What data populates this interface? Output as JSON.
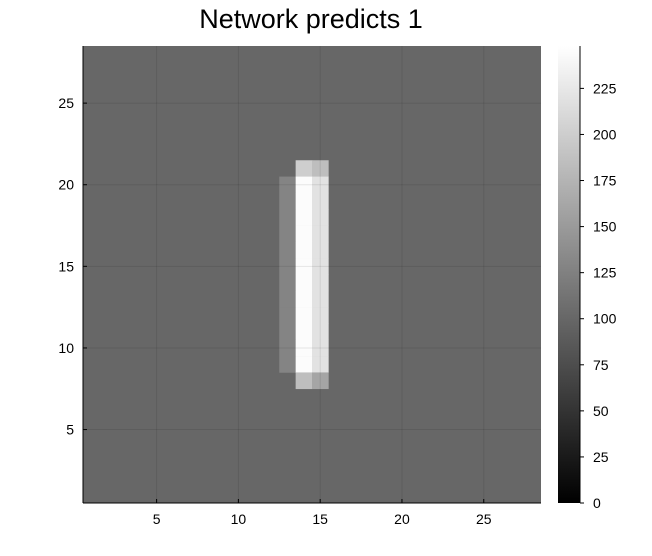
{
  "chart_data": {
    "type": "heatmap",
    "title": "Network predicts 1",
    "xlabel": "",
    "ylabel": "",
    "xlim": [
      0.5,
      28.5
    ],
    "ylim": [
      0.5,
      28.5
    ],
    "x_ticks": [
      5,
      10,
      15,
      20,
      25
    ],
    "y_ticks": [
      5,
      10,
      15,
      20,
      25
    ],
    "grid": true,
    "colormap": "grays",
    "colorbar": {
      "range": [
        0,
        248
      ],
      "ticks": [
        0,
        25,
        50,
        75,
        100,
        125,
        150,
        175,
        200,
        225
      ]
    },
    "background_value": 100,
    "cells": [
      {
        "x": 14,
        "y": 21,
        "v": 200
      },
      {
        "x": 15,
        "y": 21,
        "v": 185
      },
      {
        "x": 13,
        "y": 20,
        "v": 128
      },
      {
        "x": 14,
        "y": 20,
        "v": 245
      },
      {
        "x": 15,
        "y": 20,
        "v": 220
      },
      {
        "x": 13,
        "y": 19,
        "v": 128
      },
      {
        "x": 14,
        "y": 19,
        "v": 245
      },
      {
        "x": 15,
        "y": 19,
        "v": 220
      },
      {
        "x": 13,
        "y": 18,
        "v": 128
      },
      {
        "x": 14,
        "y": 18,
        "v": 245
      },
      {
        "x": 15,
        "y": 18,
        "v": 220
      },
      {
        "x": 13,
        "y": 17,
        "v": 128
      },
      {
        "x": 14,
        "y": 17,
        "v": 245
      },
      {
        "x": 15,
        "y": 17,
        "v": 220
      },
      {
        "x": 13,
        "y": 16,
        "v": 128
      },
      {
        "x": 14,
        "y": 16,
        "v": 245
      },
      {
        "x": 15,
        "y": 16,
        "v": 220
      },
      {
        "x": 13,
        "y": 15,
        "v": 128
      },
      {
        "x": 14,
        "y": 15,
        "v": 245
      },
      {
        "x": 15,
        "y": 15,
        "v": 220
      },
      {
        "x": 13,
        "y": 14,
        "v": 128
      },
      {
        "x": 14,
        "y": 14,
        "v": 245
      },
      {
        "x": 15,
        "y": 14,
        "v": 220
      },
      {
        "x": 13,
        "y": 13,
        "v": 128
      },
      {
        "x": 14,
        "y": 13,
        "v": 245
      },
      {
        "x": 15,
        "y": 13,
        "v": 220
      },
      {
        "x": 13,
        "y": 12,
        "v": 128
      },
      {
        "x": 14,
        "y": 12,
        "v": 245
      },
      {
        "x": 15,
        "y": 12,
        "v": 220
      },
      {
        "x": 13,
        "y": 11,
        "v": 128
      },
      {
        "x": 14,
        "y": 11,
        "v": 245
      },
      {
        "x": 15,
        "y": 11,
        "v": 220
      },
      {
        "x": 13,
        "y": 10,
        "v": 128
      },
      {
        "x": 14,
        "y": 10,
        "v": 245
      },
      {
        "x": 15,
        "y": 10,
        "v": 220
      },
      {
        "x": 13,
        "y": 9,
        "v": 128
      },
      {
        "x": 14,
        "y": 9,
        "v": 245
      },
      {
        "x": 15,
        "y": 9,
        "v": 220
      },
      {
        "x": 14,
        "y": 8,
        "v": 185
      },
      {
        "x": 15,
        "y": 8,
        "v": 160
      }
    ]
  }
}
